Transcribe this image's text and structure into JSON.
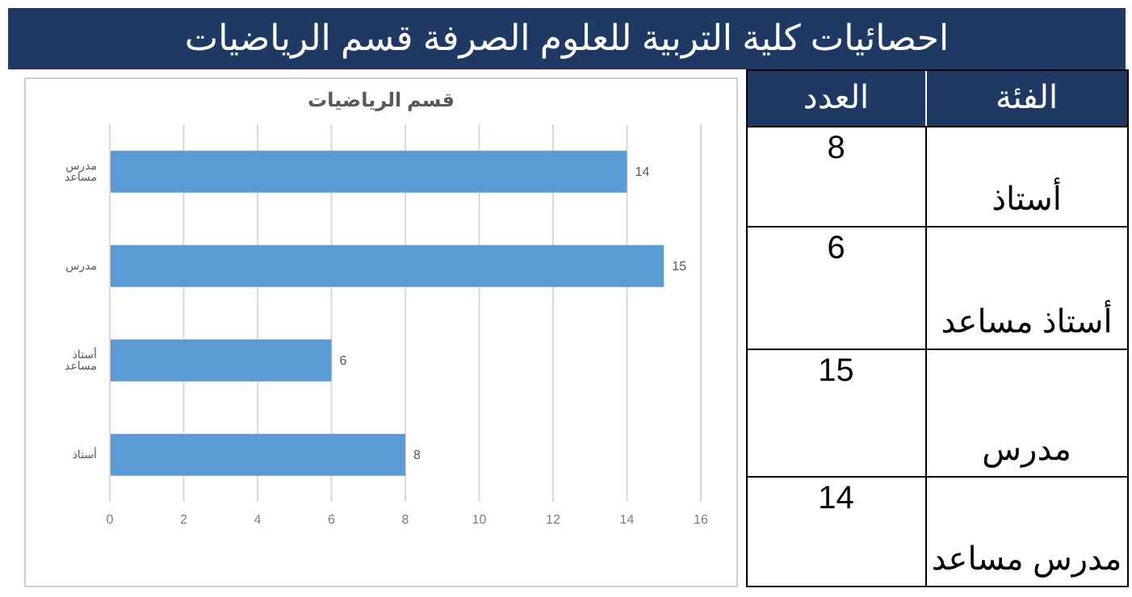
{
  "chart_data": {
    "type": "bar",
    "orientation": "horizontal",
    "title": "احصائيات كلية التربية للعلوم الصرفة قسم الرياضيات",
    "subtitle": "قسم الرياضيات",
    "categories": [
      "مدرس مساعد",
      "مدرس",
      "أستاذ مساعد",
      "أستاذ"
    ],
    "values": [
      14,
      15,
      6,
      8
    ],
    "color": "#5b9bd5",
    "xlim": [
      0,
      16
    ],
    "xticks": [
      0,
      2,
      4,
      6,
      8,
      10,
      12,
      14,
      16
    ],
    "grid": "x",
    "data_labels": true,
    "annotations": [
      "الفئة",
      "العدد",
      "8",
      "6",
      "15",
      "14"
    ]
  }
}
